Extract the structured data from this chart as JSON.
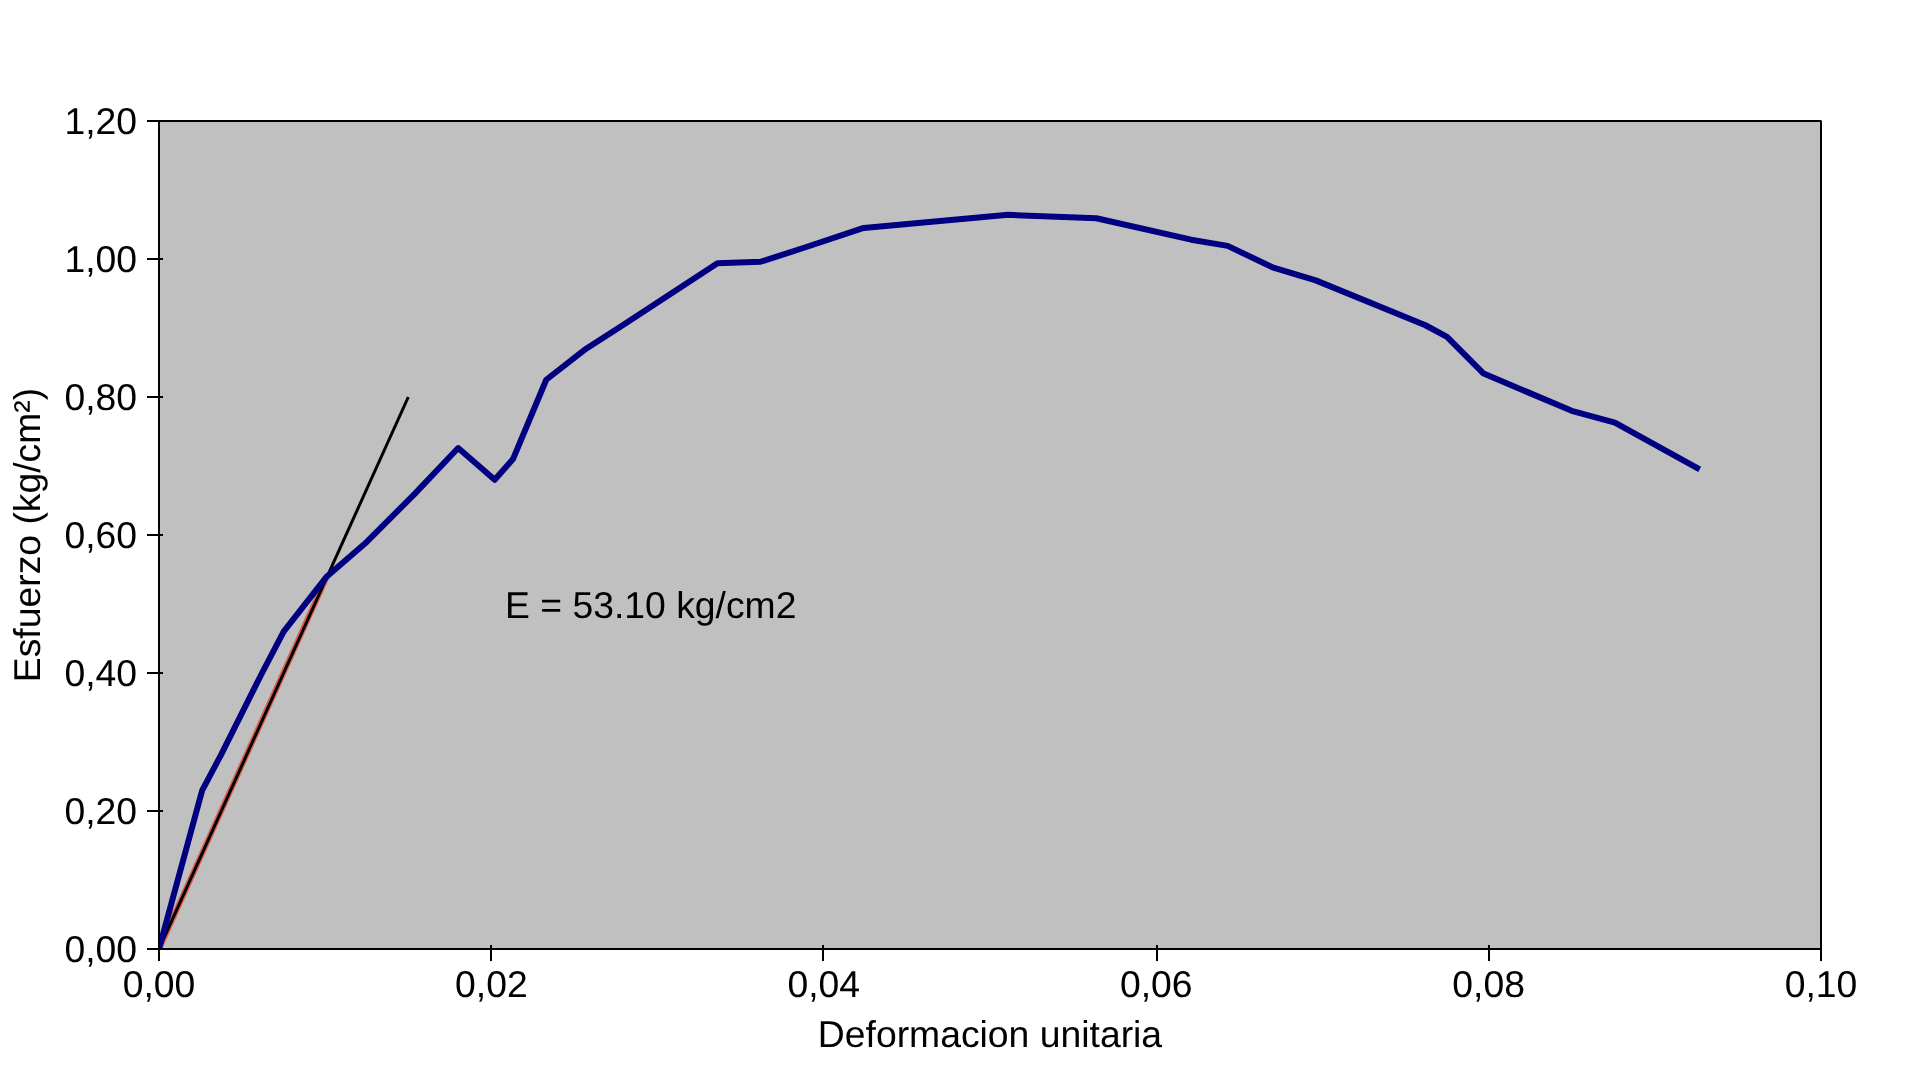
{
  "chart_data": {
    "type": "line",
    "xlabel": "Deformacion unitaria",
    "ylabel": "Esfuerzo (kg/cm²)",
    "xlim": [
      0,
      0.1
    ],
    "ylim": [
      0,
      1.2
    ],
    "xticks": [
      {
        "value": 0,
        "label": "0,00"
      },
      {
        "value": 0.02,
        "label": "0,02"
      },
      {
        "value": 0.04,
        "label": "0,04"
      },
      {
        "value": 0.06,
        "label": "0,06"
      },
      {
        "value": 0.08,
        "label": "0,08"
      },
      {
        "value": 0.1,
        "label": "0,10"
      }
    ],
    "yticks": [
      {
        "value": 0,
        "label": "0,00"
      },
      {
        "value": 0.2,
        "label": "0,20"
      },
      {
        "value": 0.4,
        "label": "0,40"
      },
      {
        "value": 0.6,
        "label": "0,60"
      },
      {
        "value": 0.8,
        "label": "0,80"
      },
      {
        "value": 1.0,
        "label": "1,00"
      },
      {
        "value": 1.2,
        "label": "1,20"
      }
    ],
    "annotations": [
      "E = 53.10 kg/cm2"
    ],
    "series": [
      {
        "color": "#e06050",
        "x": [
          0,
          0.0101
        ],
        "values": [
          0,
          0.54
        ]
      },
      {
        "color": "#000000",
        "x": [
          0,
          0.015
        ],
        "values": [
          0,
          0.8
        ]
      },
      {
        "color": "#000080",
        "x": [
          0,
          0.0026,
          0.0037,
          0.0062,
          0.0075,
          0.0101,
          0.0125,
          0.0154,
          0.018,
          0.0202,
          0.0213,
          0.0233,
          0.0257,
          0.0279,
          0.0336,
          0.0362,
          0.0389,
          0.0424,
          0.0511,
          0.0564,
          0.0621,
          0.0643,
          0.067,
          0.0696,
          0.0762,
          0.0775,
          0.0797,
          0.085,
          0.0876,
          0.0927
        ],
        "values": [
          0,
          0.23,
          0.28,
          0.4,
          0.46,
          0.54,
          0.59,
          0.66,
          0.726,
          0.68,
          0.71,
          0.825,
          0.87,
          0.904,
          0.994,
          0.996,
          1.017,
          1.045,
          1.064,
          1.059,
          1.028,
          1.019,
          0.988,
          0.969,
          0.904,
          0.887,
          0.834,
          0.78,
          0.763,
          0.695
        ]
      }
    ]
  }
}
